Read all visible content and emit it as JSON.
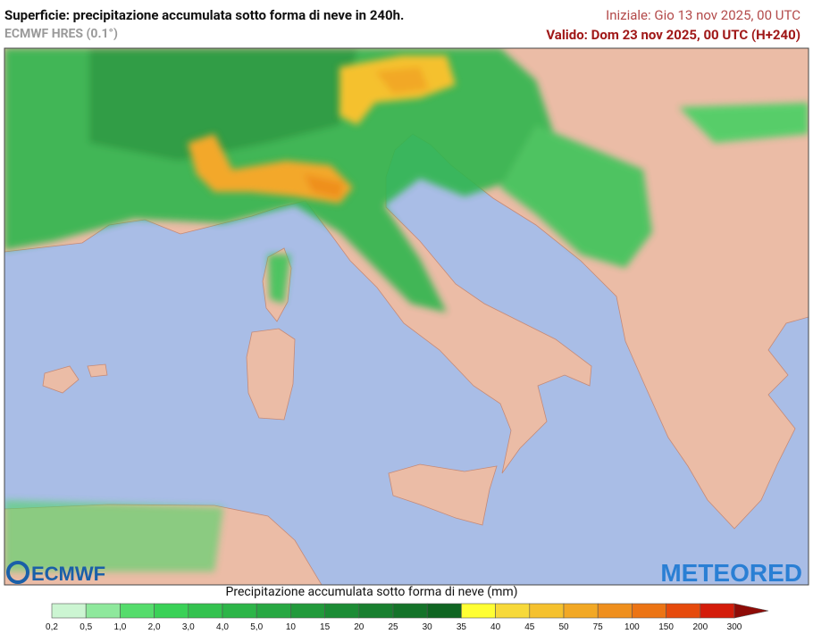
{
  "header": {
    "title": "Superficie: precipitazione accumulata sotto forma di neve in 240h.",
    "subtitle": "ECMWF HRES (0.1°)",
    "init": "Iniziale: Gio 13 nov 2025, 00 UTC",
    "valid": "Valido: Dom 23 nov 2025, 00 UTC (H+240)"
  },
  "logos": {
    "left": "ECMWF",
    "right": "METEORED"
  },
  "legend": {
    "title": "Precipitazione accumulata sotto forma di neve (mm)",
    "labels": [
      "0,2",
      "0,5",
      "1,0",
      "2,0",
      "3,0",
      "4,0",
      "5,0",
      "10",
      "15",
      "20",
      "25",
      "30",
      "35",
      "40",
      "45",
      "50",
      "75",
      "100",
      "150",
      "200",
      "300"
    ],
    "colors": [
      "#ccf5d2",
      "#8ee89c",
      "#55dc6c",
      "#3ad157",
      "#34c24f",
      "#2db548",
      "#28a843",
      "#229a3b",
      "#1c8c35",
      "#187f2f",
      "#147329",
      "#0f6522",
      "#ffff33",
      "#f7d93a",
      "#f5c12e",
      "#f2a825",
      "#ef8f1d",
      "#ec7414",
      "#e64a0c",
      "#d41c0a",
      "#8e0b07"
    ]
  }
}
